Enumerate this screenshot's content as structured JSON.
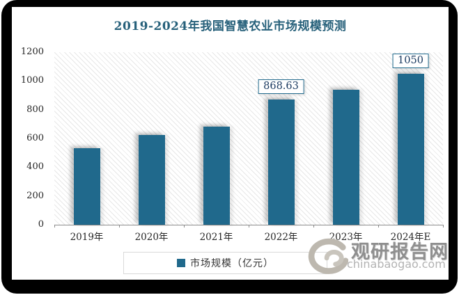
{
  "chart_data": {
    "type": "bar",
    "title": "2019-2024年我国智慧农业市场规模预测",
    "categories": [
      "2019年",
      "2020年",
      "2021年",
      "2022年",
      "2023年",
      "2024年E"
    ],
    "values": [
      530,
      622,
      680,
      868.63,
      940,
      1050
    ],
    "bar_labels": [
      "",
      "",
      "",
      "868.63",
      "",
      "1050"
    ],
    "ylim": [
      0,
      1200
    ],
    "yticks": [
      0,
      200,
      400,
      600,
      800,
      1000,
      1200
    ],
    "xlabel": "",
    "ylabel": "",
    "grid": false,
    "plot_background": "diagonal-hatch",
    "legend_position": "bottom",
    "legend": [
      "市场规模（亿元）"
    ],
    "colors": {
      "bar": "#20698C",
      "title": "#26607A",
      "data_label_text": "#17375E",
      "data_label_border": "#20698C",
      "axis_line": "#8a8a8a",
      "tick_text": "#262626",
      "legend_border": "#d9d9d9",
      "frame": "#000000"
    }
  },
  "legend": {
    "item_label": "市场规模（亿元）"
  },
  "watermark": {
    "brand": "观研报告网",
    "domain": "chinabaogao.com"
  }
}
